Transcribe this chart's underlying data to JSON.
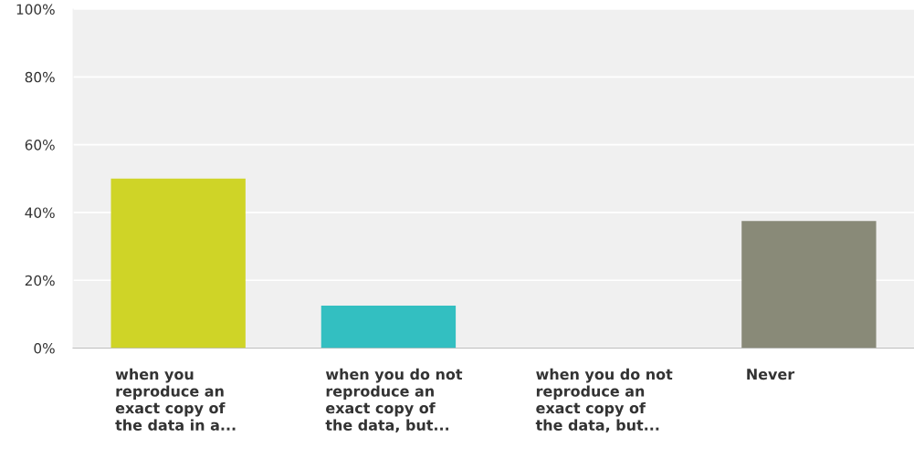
{
  "chart_data": {
    "type": "bar",
    "categories": [
      "when you\nreproduce an\nexact copy of\nthe data in a...",
      "when you do not\nreproduce an\nexact copy of\nthe data, but...",
      "when you do not\nreproduce an\nexact copy of\nthe data, but...",
      "Never"
    ],
    "values": [
      50,
      12.5,
      0,
      37.5
    ],
    "colors": [
      "#cfd427",
      "#33bfc1",
      "#8fb0c8",
      "#898a78"
    ],
    "ylim": [
      0,
      100
    ],
    "yticks": [
      {
        "value": 0,
        "label": "0%"
      },
      {
        "value": 20,
        "label": "20%"
      },
      {
        "value": 40,
        "label": "40%"
      },
      {
        "value": 60,
        "label": "60%"
      },
      {
        "value": 80,
        "label": "80%"
      },
      {
        "value": 100,
        "label": "100%"
      }
    ],
    "grid": "y"
  }
}
